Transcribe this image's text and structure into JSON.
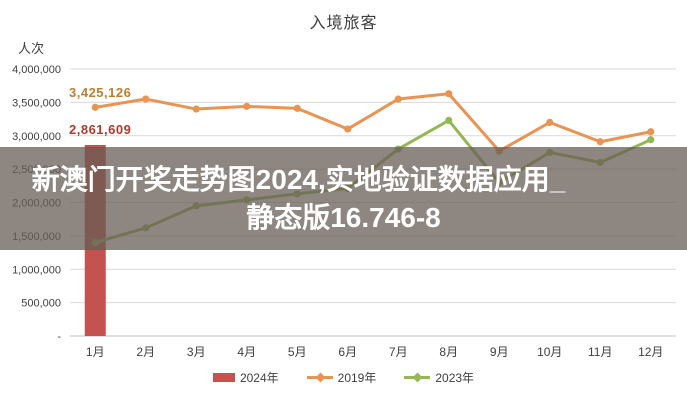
{
  "chart": {
    "title": "入境旅客",
    "unit_label": "人次"
  },
  "overlay": {
    "line1": "新澳门开奖走势图2024,实地验证数据应用_",
    "line2": "静态版16.746-8",
    "band_color": "rgba(104,94,85,0.75)",
    "text_color": "#ffffff"
  },
  "chart_data": {
    "type": "combo_bar_line",
    "title": "入境旅客",
    "xlabel": "",
    "ylabel": "人次",
    "categories": [
      "1月",
      "2月",
      "3月",
      "4月",
      "5月",
      "6月",
      "7月",
      "8月",
      "9月",
      "10月",
      "11月",
      "12月"
    ],
    "series": [
      {
        "name": "2024年",
        "type": "bar",
        "color": "#C4524E",
        "values": [
          2861609,
          null,
          null,
          null,
          null,
          null,
          null,
          null,
          null,
          null,
          null,
          null
        ]
      },
      {
        "name": "2019年",
        "type": "line",
        "color": "#EA9352",
        "values": [
          3425126,
          3550000,
          3400000,
          3440000,
          3410000,
          3100000,
          3550000,
          3630000,
          2770000,
          3200000,
          2910000,
          3060000
        ]
      },
      {
        "name": "2023年",
        "type": "line",
        "color": "#95B754",
        "values": [
          1400000,
          1620000,
          1950000,
          2040000,
          2130000,
          2210000,
          2800000,
          3230000,
          2300000,
          2750000,
          2600000,
          2940000
        ]
      }
    ],
    "data_labels": [
      {
        "text": "3,425,126",
        "series": "2019年",
        "color": "#BE7D33"
      },
      {
        "text": "2,861,609",
        "series": "2024年",
        "color": "#B03A30"
      }
    ],
    "y_ticks": [
      "4,000,000",
      "3,500,000",
      "3,000,000",
      "2,500,000",
      "2,000,000",
      "1,500,000",
      "1,000,000",
      "500,000",
      "-"
    ],
    "y_tick_step": 500000,
    "ylim": [
      0,
      4000000
    ],
    "grid": true,
    "grid_color": "#D9D9D9",
    "axis_color": "#BFBFBF",
    "legend_position": "bottom"
  }
}
